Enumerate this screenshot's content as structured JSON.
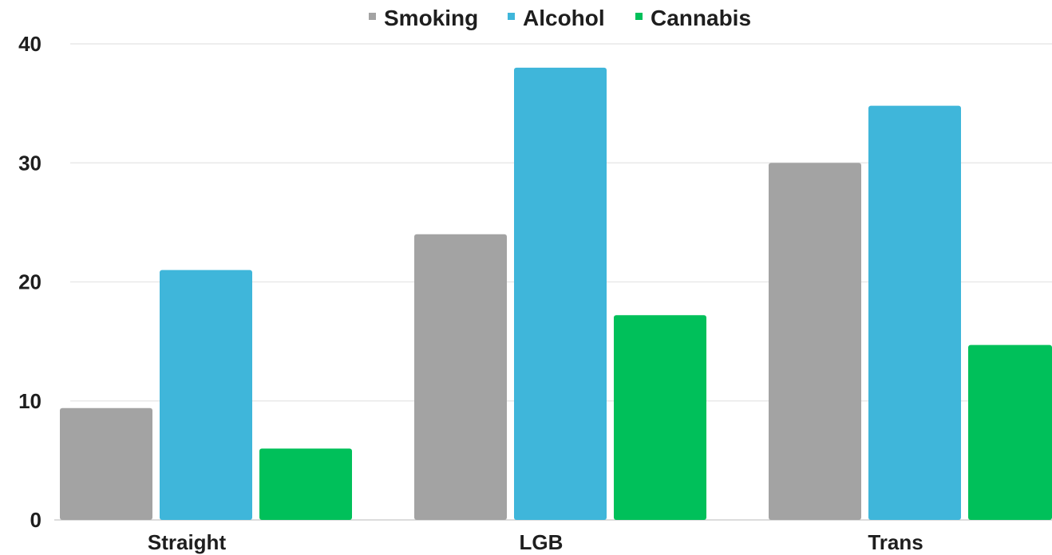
{
  "chart_data": {
    "type": "bar",
    "categories": [
      "Straight",
      "LGB",
      "Trans"
    ],
    "series": [
      {
        "name": "Smoking",
        "values": [
          9.4,
          24,
          30
        ],
        "color": "#a3a3a3"
      },
      {
        "name": "Alcohol",
        "values": [
          21,
          38,
          34.8
        ],
        "color": "#3fb6da"
      },
      {
        "name": "Cannabis",
        "values": [
          6,
          17.2,
          14.7
        ],
        "color": "#00c05a"
      }
    ],
    "ylim": [
      0,
      40
    ],
    "yticks": [
      "0",
      "10",
      "20",
      "30",
      "40"
    ],
    "grid": true,
    "legend_position": "top-center"
  }
}
